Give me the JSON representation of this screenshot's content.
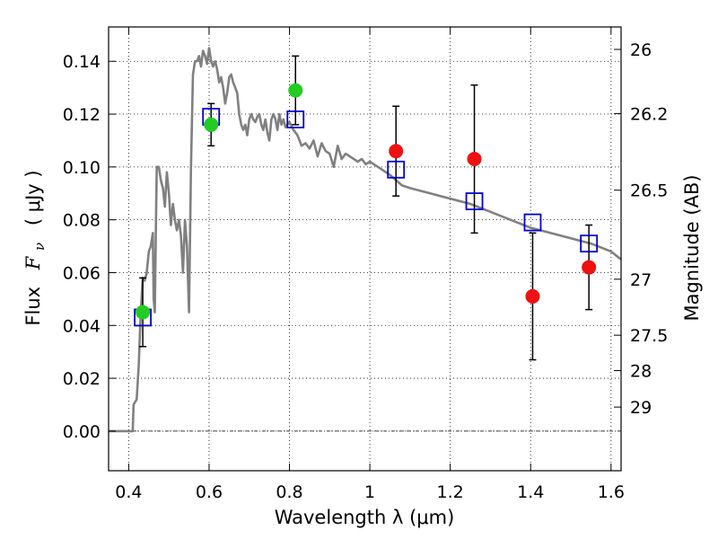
{
  "chart_data": {
    "type": "scatter",
    "xlabel": "Wavelength  λ (μm)",
    "ylabel_text": "Flux",
    "ylabel_symbol": "F",
    "ylabel_subscript": "ν",
    "ylabel_unit": "( μJy )",
    "y2label": "Magnitude (AB)",
    "xlim": [
      0.35,
      1.625
    ],
    "ylim": [
      -0.015,
      0.153
    ],
    "grid": true,
    "x_ticks": [
      {
        "value": 0.4,
        "label": "0.4"
      },
      {
        "value": 0.6,
        "label": "0.6"
      },
      {
        "value": 0.8,
        "label": "0.8"
      },
      {
        "value": 1.0,
        "label": "1"
      },
      {
        "value": 1.2,
        "label": "1.2"
      },
      {
        "value": 1.4,
        "label": "1.4"
      },
      {
        "value": 1.6,
        "label": "1.6"
      }
    ],
    "y_ticks": [
      {
        "value": 0.0,
        "label": "0.00"
      },
      {
        "value": 0.02,
        "label": "0.02"
      },
      {
        "value": 0.04,
        "label": "0.04"
      },
      {
        "value": 0.06,
        "label": "0.06"
      },
      {
        "value": 0.08,
        "label": "0.08"
      },
      {
        "value": 0.1,
        "label": "0.10"
      },
      {
        "value": 0.12,
        "label": "0.12"
      },
      {
        "value": 0.14,
        "label": "0.14"
      }
    ],
    "y2_ticks": [
      {
        "flux": 0.1445,
        "label": "26"
      },
      {
        "flux": 0.1202,
        "label": "26.2"
      },
      {
        "flux": 0.0912,
        "label": "26.5"
      },
      {
        "flux": 0.0575,
        "label": "27"
      },
      {
        "flux": 0.0363,
        "label": "27.5"
      },
      {
        "flux": 0.0229,
        "label": "28"
      },
      {
        "flux": 0.0091,
        "label": "29"
      }
    ],
    "series": [
      {
        "kind": "line",
        "color": "#808080",
        "x": [
          0.35,
          0.4,
          0.41,
          0.412,
          0.42,
          0.425,
          0.43,
          0.435,
          0.44,
          0.445,
          0.45,
          0.455,
          0.46,
          0.462,
          0.465,
          0.468,
          0.47,
          0.475,
          0.48,
          0.485,
          0.49,
          0.495,
          0.5,
          0.505,
          0.51,
          0.515,
          0.52,
          0.525,
          0.53,
          0.535,
          0.54,
          0.545,
          0.55,
          0.555,
          0.56,
          0.565,
          0.57,
          0.575,
          0.58,
          0.585,
          0.59,
          0.595,
          0.6,
          0.605,
          0.61,
          0.615,
          0.62,
          0.625,
          0.63,
          0.635,
          0.64,
          0.645,
          0.65,
          0.655,
          0.66,
          0.665,
          0.67,
          0.675,
          0.68,
          0.685,
          0.69,
          0.695,
          0.7,
          0.705,
          0.71,
          0.715,
          0.72,
          0.725,
          0.73,
          0.735,
          0.74,
          0.745,
          0.75,
          0.755,
          0.76,
          0.765,
          0.77,
          0.775,
          0.78,
          0.785,
          0.79,
          0.8,
          0.81,
          0.82,
          0.83,
          0.84,
          0.85,
          0.86,
          0.87,
          0.88,
          0.89,
          0.9,
          0.91,
          0.92,
          0.93,
          0.94,
          0.95,
          0.96,
          0.97,
          0.98,
          0.99,
          1.0,
          1.02,
          1.05,
          1.08,
          1.1,
          1.15,
          1.2,
          1.25,
          1.3,
          1.35,
          1.4,
          1.45,
          1.5,
          1.55,
          1.6,
          1.625
        ],
        "y": [
          0.0,
          0.0,
          0.0,
          0.01,
          0.012,
          0.025,
          0.045,
          0.058,
          0.057,
          0.06,
          0.068,
          0.07,
          0.075,
          0.05,
          0.045,
          0.08,
          0.1,
          0.1,
          0.095,
          0.092,
          0.085,
          0.098,
          0.09,
          0.078,
          0.086,
          0.08,
          0.076,
          0.08,
          0.074,
          0.06,
          0.08,
          0.07,
          0.045,
          0.1,
          0.135,
          0.14,
          0.14,
          0.142,
          0.138,
          0.144,
          0.142,
          0.139,
          0.145,
          0.14,
          0.138,
          0.14,
          0.137,
          0.132,
          0.134,
          0.13,
          0.124,
          0.128,
          0.134,
          0.135,
          0.132,
          0.13,
          0.128,
          0.12,
          0.116,
          0.114,
          0.116,
          0.112,
          0.118,
          0.12,
          0.118,
          0.117,
          0.119,
          0.12,
          0.116,
          0.114,
          0.118,
          0.113,
          0.11,
          0.118,
          0.12,
          0.118,
          0.114,
          0.12,
          0.116,
          0.118,
          0.115,
          0.117,
          0.114,
          0.112,
          0.108,
          0.109,
          0.107,
          0.11,
          0.104,
          0.109,
          0.106,
          0.105,
          0.1,
          0.108,
          0.103,
          0.105,
          0.104,
          0.103,
          0.102,
          0.103,
          0.101,
          0.102,
          0.1,
          0.097,
          0.093,
          0.092,
          0.09,
          0.088,
          0.086,
          0.083,
          0.08,
          0.077,
          0.075,
          0.073,
          0.071,
          0.068,
          0.065
        ]
      },
      {
        "kind": "markers",
        "marker": "square",
        "color": "#0000cc",
        "x": [
          0.435,
          0.605,
          0.815,
          1.065,
          1.26,
          1.405,
          1.545
        ],
        "y": [
          0.043,
          0.119,
          0.118,
          0.099,
          0.087,
          0.079,
          0.071
        ]
      },
      {
        "kind": "markers",
        "marker": "circle",
        "color": "#22cc22",
        "x": [
          0.435,
          0.605,
          0.815
        ],
        "y": [
          0.045,
          0.116,
          0.129
        ],
        "err": [
          0.013,
          0.008,
          0.013
        ]
      },
      {
        "kind": "markers",
        "marker": "circle",
        "color": "#ee1111",
        "x": [
          1.065,
          1.26,
          1.405,
          1.545
        ],
        "y": [
          0.106,
          0.103,
          0.051,
          0.062
        ],
        "err": [
          0.017,
          0.028,
          0.024,
          0.016
        ]
      }
    ]
  }
}
